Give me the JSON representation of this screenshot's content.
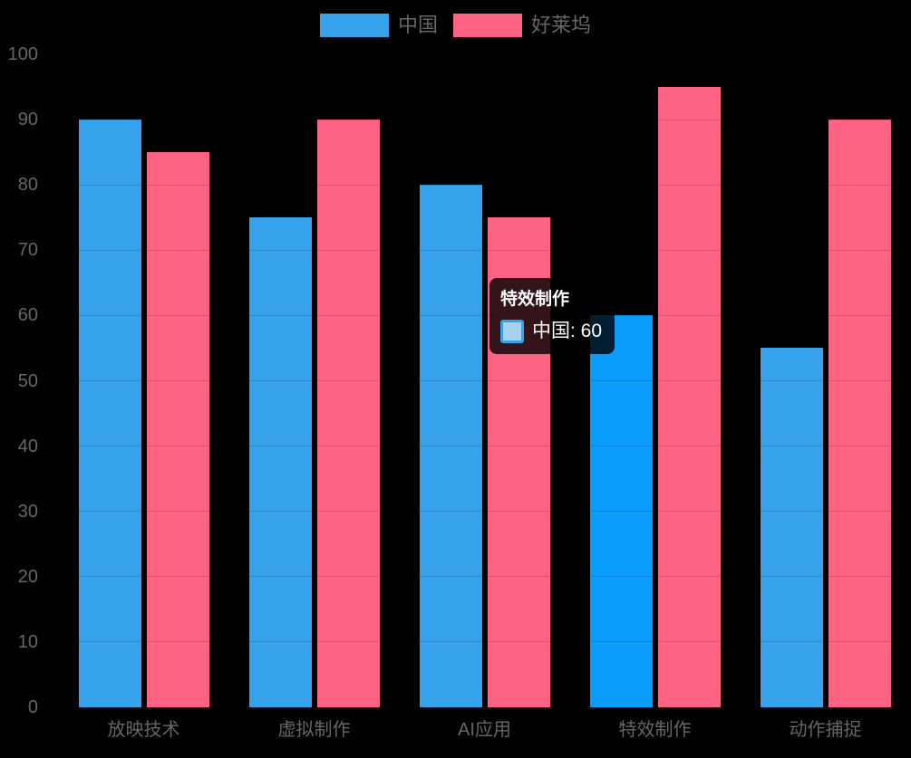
{
  "chart_data": {
    "type": "bar",
    "title": "",
    "categories": [
      "放映技术",
      "虚拟制作",
      "AI应用",
      "特效制作",
      "动作捕捉"
    ],
    "series": [
      {
        "name": "中国",
        "color": "#36A2EB",
        "values": [
          90,
          75,
          80,
          60,
          55
        ]
      },
      {
        "name": "好莱坞",
        "color": "#FF6384",
        "values": [
          85,
          90,
          75,
          95,
          90
        ]
      }
    ],
    "highlight": {
      "series_index": 0,
      "category_index": 3,
      "color": "#099CFB"
    },
    "ylim": [
      0,
      100
    ],
    "ytick_step": 10,
    "yticks": [
      0,
      10,
      20,
      30,
      40,
      50,
      60,
      70,
      80,
      90,
      100
    ],
    "grid": "faint horizontal lines at every tick, visible only across bars",
    "legend_position": "top-center",
    "axis_text_color": "#666666",
    "background": "#000000"
  },
  "legend": {
    "items": [
      {
        "label": "中国",
        "color": "#36A2EB"
      },
      {
        "label": "好莱坞",
        "color": "#FF6384"
      }
    ]
  },
  "tooltip": {
    "title": "特效制作",
    "series": "中国",
    "value": 60,
    "line": "中国: 60",
    "swatch_fill": "#A9D2F0",
    "swatch_border": "#36A2EB"
  }
}
